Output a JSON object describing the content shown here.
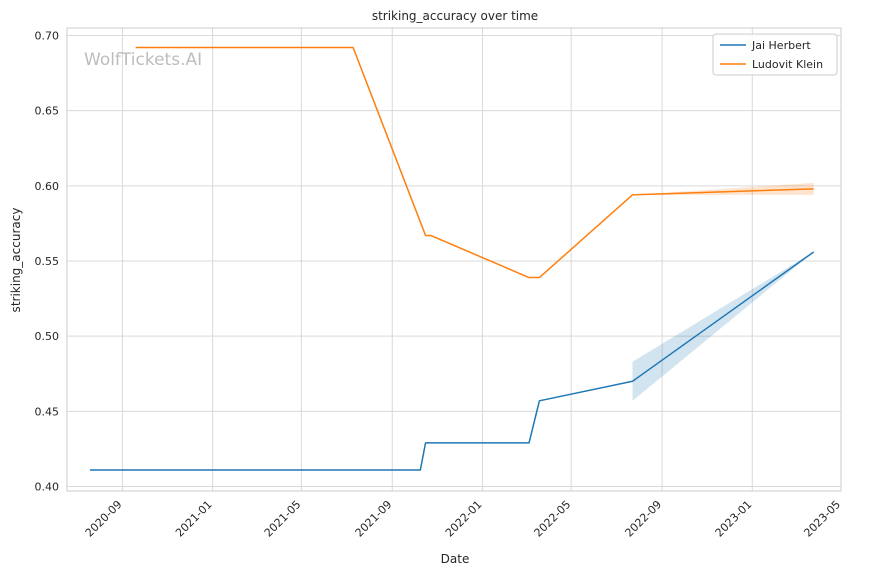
{
  "chart_data": {
    "type": "line",
    "title": "striking_accuracy over time",
    "xlabel": "Date",
    "ylabel": "striking_accuracy",
    "watermark": "WolfTickets.AI",
    "xlim": [
      "2020-06-18",
      "2023-05-01"
    ],
    "ylim": [
      0.397,
      0.705
    ],
    "x_ticks": [
      "2020-09",
      "2021-01",
      "2021-05",
      "2021-09",
      "2022-01",
      "2022-05",
      "2022-09",
      "2023-01",
      "2023-05"
    ],
    "y_ticks": [
      "0.40",
      "0.45",
      "0.50",
      "0.55",
      "0.60",
      "0.65",
      "0.70"
    ],
    "grid": true,
    "legend_position": "top-right",
    "series": [
      {
        "name": "Jai Herbert",
        "color": "#1f77b4",
        "points": [
          [
            "2020-07-19",
            0.411
          ],
          [
            "2021-10-09",
            0.411
          ],
          [
            "2021-10-16",
            0.429
          ],
          [
            "2022-03-05",
            0.429
          ],
          [
            "2022-03-19",
            0.457
          ],
          [
            "2022-07-23",
            0.47
          ],
          [
            "2023-03-25",
            0.556
          ]
        ],
        "band": [
          [
            "2022-07-23",
            0.457,
            0.483
          ],
          [
            "2023-03-25",
            0.556,
            0.556
          ]
        ]
      },
      {
        "name": "Ludovit Klein",
        "color": "#ff7f0e",
        "points": [
          [
            "2020-09-19",
            0.692
          ],
          [
            "2021-07-10",
            0.692
          ],
          [
            "2021-10-16",
            0.567
          ],
          [
            "2021-10-23",
            0.567
          ],
          [
            "2022-03-05",
            0.539
          ],
          [
            "2022-03-19",
            0.539
          ],
          [
            "2022-07-23",
            0.594
          ],
          [
            "2023-03-25",
            0.598
          ]
        ],
        "band": [
          [
            "2022-07-23",
            0.594,
            0.594
          ],
          [
            "2023-03-25",
            0.594,
            0.602
          ]
        ]
      }
    ]
  }
}
